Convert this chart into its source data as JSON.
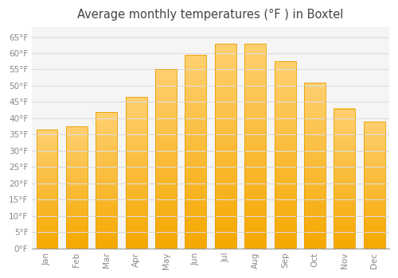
{
  "title": "Average monthly temperatures (°F ) in Boxtel",
  "months": [
    "Jan",
    "Feb",
    "Mar",
    "Apr",
    "May",
    "Jun",
    "Jul",
    "Aug",
    "Sep",
    "Oct",
    "Nov",
    "Dec"
  ],
  "values": [
    36.5,
    37.5,
    42,
    46.5,
    55,
    59.5,
    63,
    63,
    57.5,
    51,
    43,
    39
  ],
  "bar_color_top": "#FFD070",
  "bar_color_bottom": "#F5A800",
  "bar_edge_color": "#E8A000",
  "background_color": "#FFFFFF",
  "plot_bg_color": "#F5F5F5",
  "grid_color": "#DDDDDD",
  "ylim": [
    0,
    68
  ],
  "yticks": [
    0,
    5,
    10,
    15,
    20,
    25,
    30,
    35,
    40,
    45,
    50,
    55,
    60,
    65
  ],
  "tick_label_color": "#888888",
  "title_color": "#444444",
  "title_fontsize": 10.5,
  "bar_width": 0.72
}
